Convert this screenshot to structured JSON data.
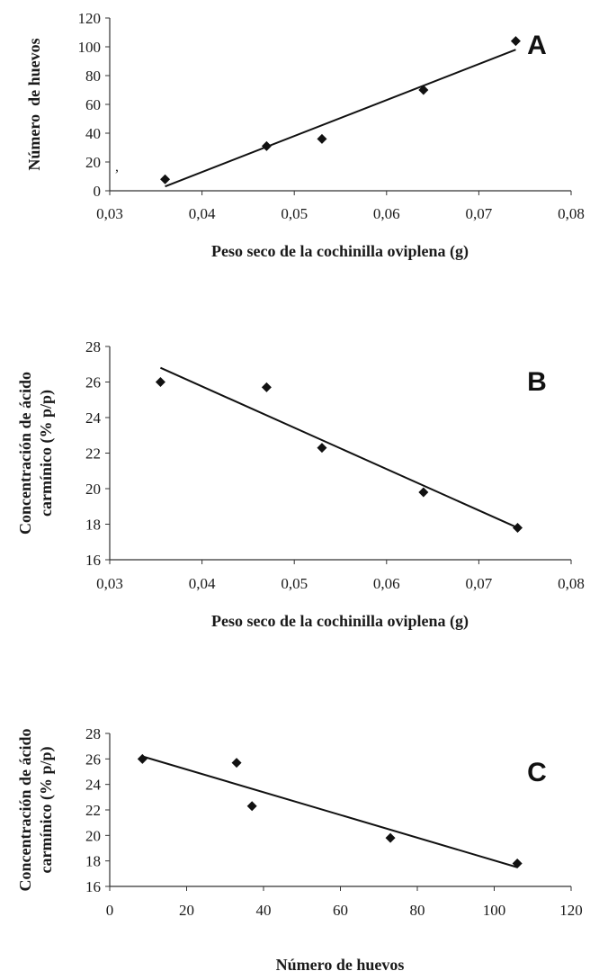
{
  "chart_data": [
    {
      "type": "scatter",
      "panel_label": "A",
      "xlabel": "Peso seco de la cochinilla oviplena (g)",
      "ylabel": "Número  de huevos",
      "xlim": [
        0.03,
        0.08
      ],
      "ylim": [
        0,
        120
      ],
      "x_ticks": [
        "0,03",
        "0,04",
        "0,05",
        "0,06",
        "0,07",
        "0,08"
      ],
      "y_ticks": [
        "0",
        "20",
        "40",
        "60",
        "80",
        "100",
        "120"
      ],
      "points": [
        {
          "x": 0.036,
          "y": 8
        },
        {
          "x": 0.047,
          "y": 31
        },
        {
          "x": 0.053,
          "y": 36
        },
        {
          "x": 0.064,
          "y": 70
        },
        {
          "x": 0.074,
          "y": 104
        }
      ],
      "trendline": {
        "x1": 0.036,
        "y1": 3,
        "x2": 0.074,
        "y2": 98
      },
      "stray_mark": ","
    },
    {
      "type": "scatter",
      "panel_label": "B",
      "xlabel": "Peso seco de la cochinilla oviplena (g)",
      "ylabel": [
        "Concentración de ácido",
        "carmínico (% p/p)"
      ],
      "xlim": [
        0.03,
        0.08
      ],
      "ylim": [
        16,
        28
      ],
      "x_ticks": [
        "0,03",
        "0,04",
        "0,05",
        "0,06",
        "0,07",
        "0,08"
      ],
      "y_ticks": [
        "16",
        "18",
        "20",
        "22",
        "24",
        "26",
        "28"
      ],
      "points": [
        {
          "x": 0.0355,
          "y": 26.0
        },
        {
          "x": 0.047,
          "y": 25.7
        },
        {
          "x": 0.053,
          "y": 22.3
        },
        {
          "x": 0.064,
          "y": 19.8
        },
        {
          "x": 0.0742,
          "y": 17.8
        }
      ],
      "trendline": {
        "x1": 0.0355,
        "y1": 26.8,
        "x2": 0.0742,
        "y2": 17.8
      }
    },
    {
      "type": "scatter",
      "panel_label": "C",
      "xlabel": "Número de huevos",
      "ylabel": [
        "Concentración de ácido",
        "carmínico (% p/p)"
      ],
      "xlim": [
        0,
        120
      ],
      "ylim": [
        16,
        28
      ],
      "x_ticks": [
        "0",
        "20",
        "40",
        "60",
        "80",
        "100",
        "120"
      ],
      "y_ticks": [
        "16",
        "18",
        "20",
        "22",
        "24",
        "26",
        "28"
      ],
      "points": [
        {
          "x": 8.5,
          "y": 26.0
        },
        {
          "x": 33,
          "y": 25.7
        },
        {
          "x": 37,
          "y": 22.3
        },
        {
          "x": 73,
          "y": 19.8
        },
        {
          "x": 106,
          "y": 17.8
        }
      ],
      "trendline": {
        "x1": 8.5,
        "y1": 26.2,
        "x2": 106,
        "y2": 17.5
      }
    }
  ]
}
